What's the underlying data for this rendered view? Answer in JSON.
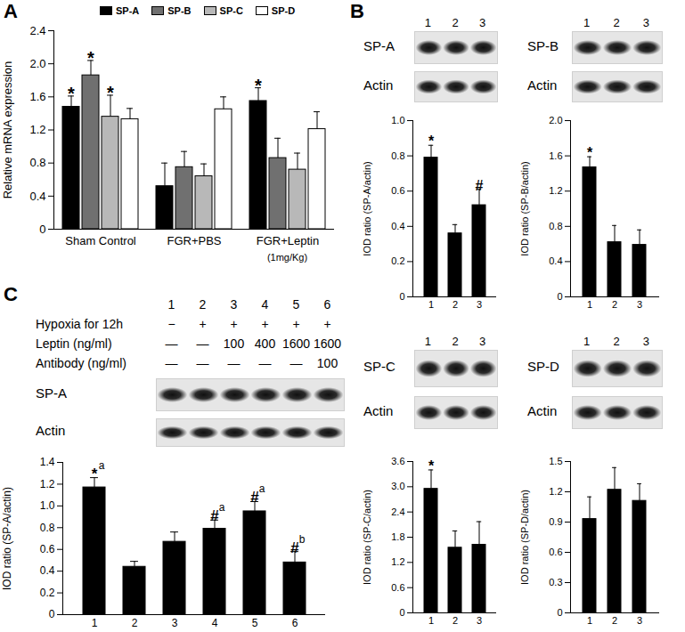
{
  "chart_data": [
    {
      "panel": "A",
      "type": "bar",
      "categories": [
        "Sham Control",
        "FGR+PBS",
        "FGR+Leptin"
      ],
      "annotations": [
        {
          "category": "FGR+Leptin",
          "text": "(1mg/Kg)"
        }
      ],
      "y_label": "Relative mRNA expression",
      "ylim": [
        0,
        2.4
      ],
      "yticks": [
        0,
        0.4,
        0.8,
        1.2,
        1.6,
        {
          "value": 2,
          "label": "2.0"
        },
        2.4
      ],
      "legend": "top",
      "series": [
        {
          "name": "SP-A",
          "color": "#000000",
          "values": [
            1.48,
            0.52,
            1.55
          ],
          "errors": [
            0.13,
            0.28,
            0.16
          ],
          "significance": [
            "*",
            null,
            "*"
          ]
        },
        {
          "name": "SP-B",
          "color": "#707070",
          "values": [
            1.86,
            0.75,
            0.86
          ],
          "errors": [
            0.18,
            0.19,
            0.24
          ],
          "significance": [
            "*",
            null,
            null
          ]
        },
        {
          "name": "SP-C",
          "color": "#b8b8b8",
          "values": [
            1.36,
            0.64,
            0.72
          ],
          "errors": [
            0.26,
            0.15,
            0.2
          ],
          "significance": [
            "*",
            null,
            null
          ]
        },
        {
          "name": "SP-D",
          "color": "#ffffff",
          "values": [
            1.33,
            1.45,
            1.21
          ],
          "errors": [
            0.13,
            0.15,
            0.21
          ],
          "significance": [
            null,
            null,
            null
          ]
        }
      ]
    },
    {
      "panel": "B",
      "type": "bar",
      "blot_lanes": [
        "1",
        "2",
        "3"
      ],
      "blot_labels": [
        "SP-A",
        "Actin"
      ],
      "categories": [
        "1",
        "2",
        "3"
      ],
      "values": [
        0.79,
        0.36,
        0.52
      ],
      "errors": [
        0.07,
        0.05,
        0.09
      ],
      "significance": [
        "*",
        null,
        "#"
      ],
      "color": "#000000",
      "y_label": "IOD ratio (SP-A/actin)",
      "ylim": [
        0,
        1
      ],
      "yticks": [
        0,
        0.2,
        0.4,
        0.6,
        0.8,
        {
          "value": 1,
          "label": "1.0"
        }
      ]
    },
    {
      "type": "bar",
      "blot_lanes": [
        "1",
        "2",
        "3"
      ],
      "blot_labels": [
        "SP-B",
        "Actin"
      ],
      "categories": [
        "1",
        "2",
        "3"
      ],
      "values": [
        1.47,
        0.62,
        0.59
      ],
      "errors": [
        0.12,
        0.19,
        0.17
      ],
      "significance": [
        "*",
        null,
        null
      ],
      "color": "#000000",
      "y_label": "IOD ratio (SP-B/actin)",
      "ylim": [
        0,
        2
      ],
      "yticks": [
        0,
        0.4,
        0.8,
        1.2,
        1.6,
        {
          "value": 2,
          "label": "2.0"
        }
      ]
    },
    {
      "type": "bar",
      "blot_lanes": [
        "1",
        "2",
        "3"
      ],
      "blot_labels": [
        "SP-C",
        "Actin"
      ],
      "categories": [
        "1",
        "2",
        "3"
      ],
      "values": [
        2.95,
        1.55,
        1.62
      ],
      "errors": [
        0.45,
        0.4,
        0.55
      ],
      "significance": [
        "*",
        null,
        null
      ],
      "color": "#000000",
      "y_label": "IOD ratio (SP-C/actin)",
      "ylim": [
        0,
        3.6
      ],
      "yticks": [
        0,
        0.6,
        1.2,
        1.8,
        2.4,
        {
          "value": 3,
          "label": "3.0"
        },
        3.6
      ]
    },
    {
      "type": "bar",
      "blot_lanes": [
        "1",
        "2",
        "3"
      ],
      "blot_labels": [
        "SP-D",
        "Actin"
      ],
      "categories": [
        "1",
        "2",
        "3"
      ],
      "values": [
        0.93,
        1.22,
        1.11
      ],
      "errors": [
        0.22,
        0.22,
        0.17
      ],
      "significance": [
        null,
        null,
        null
      ],
      "color": "#000000",
      "y_label": "IOD ratio (SP-D/actin)",
      "ylim": [
        0,
        1.5
      ],
      "yticks": [
        0,
        0.3,
        0.6,
        0.9,
        1.2,
        1.5
      ]
    },
    {
      "panel": "C",
      "type": "bar",
      "conditions": {
        "lanes": [
          "1",
          "2",
          "3",
          "4",
          "5",
          "6"
        ],
        "rows": [
          {
            "label": "Hypoxia for 12h",
            "values": [
              "−",
              "+",
              "+",
              "+",
              "+",
              "+"
            ]
          },
          {
            "label": "Leptin (ng/ml)",
            "values": [
              "—",
              "—",
              "100",
              "400",
              "1600",
              "1600"
            ]
          },
          {
            "label": "Antibody (ng/ml)",
            "values": [
              "—",
              "—",
              "—",
              "—",
              "—",
              "100"
            ]
          }
        ]
      },
      "blot_labels": [
        "SP-A",
        "Actin"
      ],
      "categories": [
        "1",
        "2",
        "3",
        "4",
        "5",
        "6"
      ],
      "values": [
        1.17,
        0.44,
        0.67,
        0.79,
        0.95,
        0.48
      ],
      "errors": [
        0.09,
        0.05,
        0.09,
        0.08,
        0.09,
        0.1
      ],
      "significance": [
        "*",
        null,
        null,
        "#",
        "#",
        "#"
      ],
      "superscripts": [
        "a",
        null,
        null,
        "a",
        "a",
        "b"
      ],
      "color": "#000000",
      "y_label": "IOD ratio (SP-A/actin)",
      "ylim": [
        0,
        1.4
      ],
      "yticks": [
        0,
        0.2,
        0.4,
        0.6,
        0.8,
        {
          "value": 1,
          "label": "1.0"
        },
        1.2,
        1.4
      ]
    }
  ]
}
